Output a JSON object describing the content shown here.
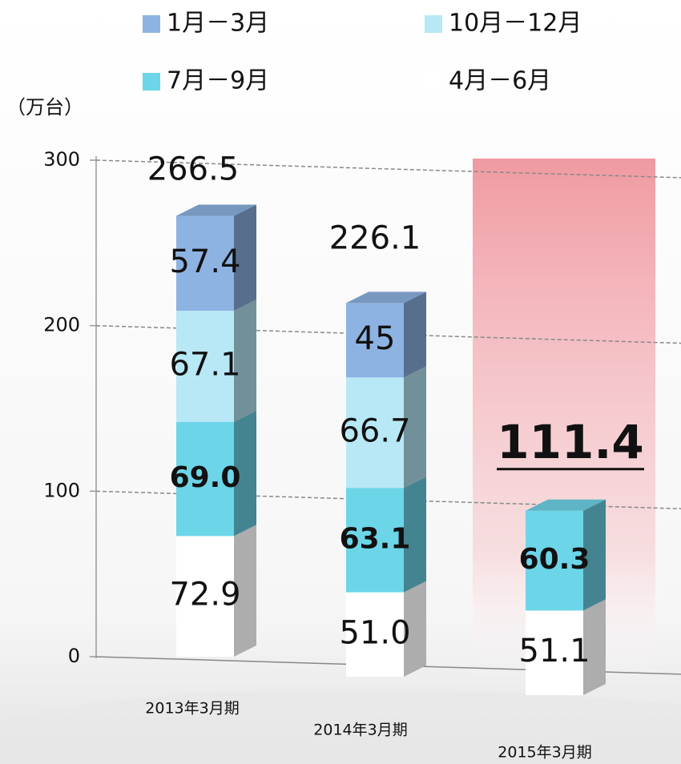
{
  "chart_data": {
    "type": "bar3d_stacked",
    "y_label": "（万台）",
    "categories": [
      "2013年3月期",
      "2014年3月期",
      "2015年3月期"
    ],
    "series": [
      {
        "name": "4月－6月",
        "color": "#ffffff",
        "values": [
          72.9,
          51.0,
          51.1
        ],
        "value_labels": [
          "72.9",
          "51.0",
          "51.1"
        ]
      },
      {
        "name": "7月－9月",
        "color": "#6dd5e8",
        "values": [
          69.0,
          63.1,
          60.3
        ],
        "value_labels": [
          "69.0",
          "63.1",
          "60.3"
        ]
      },
      {
        "name": "10月－12月",
        "color": "#b8e8f6",
        "values": [
          67.1,
          66.7,
          null
        ],
        "value_labels": [
          "67.1",
          "66.7",
          null
        ]
      },
      {
        "name": "1月－3月",
        "color": "#8db3e2",
        "values": [
          57.4,
          45,
          null
        ],
        "value_labels": [
          "57.4",
          "45",
          null
        ]
      }
    ],
    "totals": [
      266.5,
      226.1,
      111.4
    ],
    "ylim": [
      0,
      300
    ],
    "yticks": [
      0,
      100,
      200,
      300
    ],
    "grid": true
  }
}
